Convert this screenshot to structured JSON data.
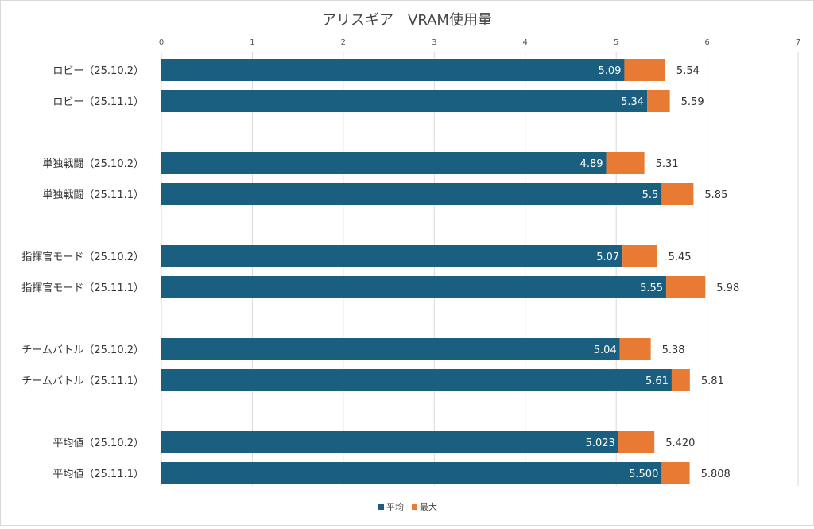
{
  "chart_data": {
    "type": "bar",
    "orientation": "horizontal",
    "title": "アリスギア　VRAM使用量",
    "xlim": [
      0,
      7
    ],
    "x_ticks": [
      "0",
      "1",
      "2",
      "3",
      "4",
      "5",
      "6",
      "7"
    ],
    "grid": true,
    "legend_position": "bottom",
    "categories": [
      "ロビー（25.10.2）",
      "ロビー（25.11.1）",
      "単独戦闘（25.10.2）",
      "単独戦闘（25.11.1）",
      "指揮官モード（25.10.2）",
      "指揮官モード（25.11.1）",
      "チームバトル（25.10.2）",
      "チームバトル（25.11.1）",
      "平均値（25.10.2）",
      "平均値（25.11.1）"
    ],
    "groups": [
      [
        0,
        1
      ],
      [
        2,
        3
      ],
      [
        4,
        5
      ],
      [
        6,
        7
      ],
      [
        8,
        9
      ]
    ],
    "series": [
      {
        "name": "平均",
        "color": "#1a5f80",
        "values": [
          5.09,
          5.34,
          4.89,
          5.5,
          5.07,
          5.55,
          5.04,
          5.61,
          5.023,
          5.5
        ],
        "labels": [
          "5.09",
          "5.34",
          "4.89",
          "5.5",
          "5.07",
          "5.55",
          "5.04",
          "5.61",
          "5.023",
          "5.500"
        ]
      },
      {
        "name": "最大",
        "color": "#e87a33",
        "values": [
          5.54,
          5.59,
          5.31,
          5.85,
          5.45,
          5.98,
          5.38,
          5.81,
          5.42,
          5.808
        ],
        "labels": [
          "5.54",
          "5.59",
          "5.31",
          "5.85",
          "5.45",
          "5.98",
          "5.38",
          "5.81",
          "5.420",
          "5.808"
        ]
      }
    ]
  }
}
